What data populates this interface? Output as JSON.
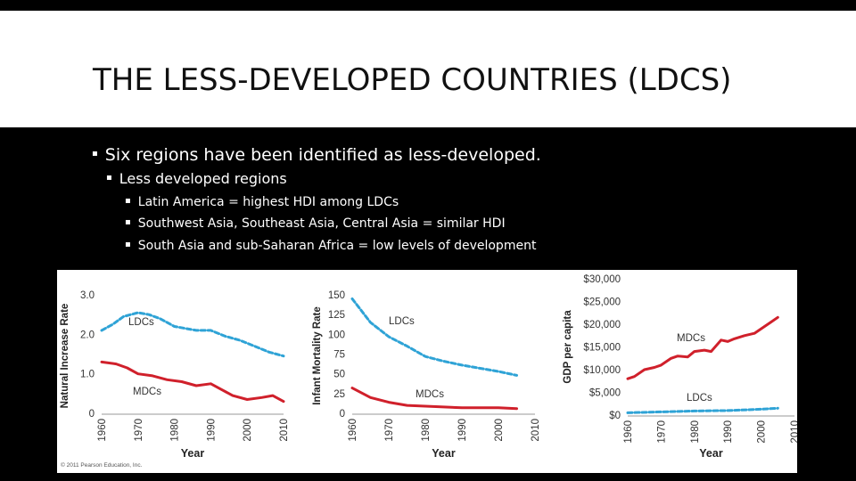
{
  "slide": {
    "title": "THE LESS-DEVELOPED COUNTRIES (LDCS)",
    "bullets": [
      "Six regions have been identified as less-developed.",
      "Less developed regions",
      "Latin America = highest HDI among LDCs",
      "Southwest Asia, Southeast Asia, Central Asia = similar HDI",
      "South Asia and sub-Saharan Africa = low levels of development"
    ],
    "copyright": "© 2011 Pearson Education, Inc."
  },
  "colors": {
    "ldc": "#2fa3d6",
    "mdc": "#d0202b",
    "background": "#000000",
    "figure": "#ffffff"
  },
  "chart_data": [
    {
      "type": "line",
      "title": "",
      "xlabel": "Year",
      "ylabel": "Natural Increase Rate",
      "xlim": [
        1960,
        2010
      ],
      "ylim": [
        0,
        3.0
      ],
      "x_ticks": [
        "1960",
        "1970",
        "1980",
        "1990",
        "2000",
        "2010"
      ],
      "y_ticks": [
        "0",
        "1.0",
        "2.0",
        "3.0"
      ],
      "series": [
        {
          "name": "LDCs",
          "style": "dashed",
          "x": [
            1960,
            1963,
            1966,
            1970,
            1973,
            1976,
            1980,
            1983,
            1986,
            1990,
            1994,
            1998,
            2002,
            2006,
            2010
          ],
          "values": [
            2.1,
            2.25,
            2.45,
            2.55,
            2.5,
            2.4,
            2.2,
            2.15,
            2.1,
            2.1,
            1.95,
            1.85,
            1.7,
            1.55,
            1.45
          ]
        },
        {
          "name": "MDCs",
          "style": "solid",
          "x": [
            1960,
            1964,
            1967,
            1970,
            1974,
            1978,
            1982,
            1986,
            1990,
            1993,
            1996,
            2000,
            2004,
            2007,
            2010
          ],
          "values": [
            1.3,
            1.25,
            1.15,
            1.0,
            0.95,
            0.85,
            0.8,
            0.7,
            0.75,
            0.6,
            0.45,
            0.35,
            0.4,
            0.45,
            0.3
          ]
        }
      ]
    },
    {
      "type": "line",
      "title": "",
      "xlabel": "Year",
      "ylabel": "Infant Mortality Rate",
      "xlim": [
        1960,
        2010
      ],
      "ylim": [
        0,
        150
      ],
      "x_ticks": [
        "1960",
        "1970",
        "1980",
        "1990",
        "2000",
        "2010"
      ],
      "y_ticks": [
        "0",
        "25",
        "50",
        "75",
        "100",
        "125",
        "150"
      ],
      "series": [
        {
          "name": "LDCs",
          "style": "dashed",
          "x": [
            1960,
            1965,
            1970,
            1975,
            1980,
            1985,
            1990,
            1995,
            2000,
            2005
          ],
          "values": [
            145,
            115,
            97,
            85,
            72,
            66,
            61,
            57,
            53,
            48
          ]
        },
        {
          "name": "MDCs",
          "style": "solid",
          "x": [
            1960,
            1965,
            1970,
            1975,
            1980,
            1985,
            1990,
            1995,
            2000,
            2005
          ],
          "values": [
            32,
            20,
            14,
            10,
            9,
            8,
            7,
            7,
            7,
            6
          ]
        }
      ]
    },
    {
      "type": "line",
      "title": "",
      "xlabel": "Year",
      "ylabel": "GDP per capita",
      "xlim": [
        1960,
        2010
      ],
      "ylim": [
        0,
        30000
      ],
      "x_ticks": [
        "1960",
        "1970",
        "1980",
        "1990",
        "2000",
        "2010"
      ],
      "y_ticks": [
        "$0",
        "$5,000",
        "$10,000",
        "$15,000",
        "$20,000",
        "$25,000",
        "$30,000"
      ],
      "series": [
        {
          "name": "MDCs",
          "style": "solid",
          "x": [
            1960,
            1962,
            1965,
            1968,
            1970,
            1973,
            1975,
            1978,
            1980,
            1983,
            1985,
            1988,
            1990,
            1992,
            1995,
            1998,
            2000,
            2003,
            2005
          ],
          "values": [
            8000,
            8500,
            10000,
            10500,
            11000,
            12500,
            13000,
            12800,
            14000,
            14300,
            14000,
            16500,
            16200,
            16800,
            17500,
            18000,
            19000,
            20500,
            21500
          ]
        },
        {
          "name": "LDCs",
          "style": "dashed",
          "x": [
            1960,
            1970,
            1980,
            1990,
            2000,
            2005
          ],
          "values": [
            500,
            700,
            900,
            1000,
            1300,
            1500
          ]
        }
      ]
    }
  ]
}
